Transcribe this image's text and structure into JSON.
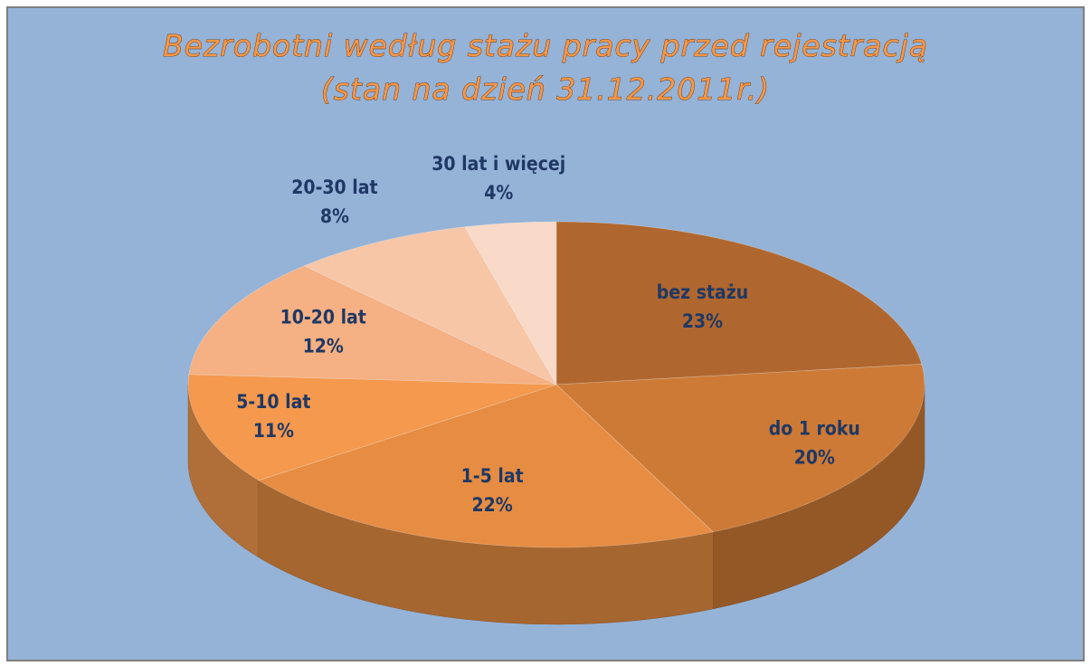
{
  "chart_data": {
    "type": "pie3d",
    "title": "Bezrobotni według stażu pracy przed rejestracją",
    "subtitle": "(stan na dzień 31.12.2011r.)",
    "categories": [
      "bez stażu",
      "do 1 roku",
      "1-5 lat",
      "5-10 lat",
      "10-20 lat",
      "20-30 lat",
      "30 lat i więcej"
    ],
    "values": [
      23,
      20,
      22,
      11,
      12,
      8,
      4
    ],
    "value_labels": [
      "23%",
      "20%",
      "22%",
      "11%",
      "12%",
      "8%",
      "4%"
    ],
    "colors": [
      "#b0672f",
      "#cd7a36",
      "#e68d43",
      "#f4994e",
      "#f5b083",
      "#f7c6a7",
      "#f9d9c7"
    ]
  }
}
